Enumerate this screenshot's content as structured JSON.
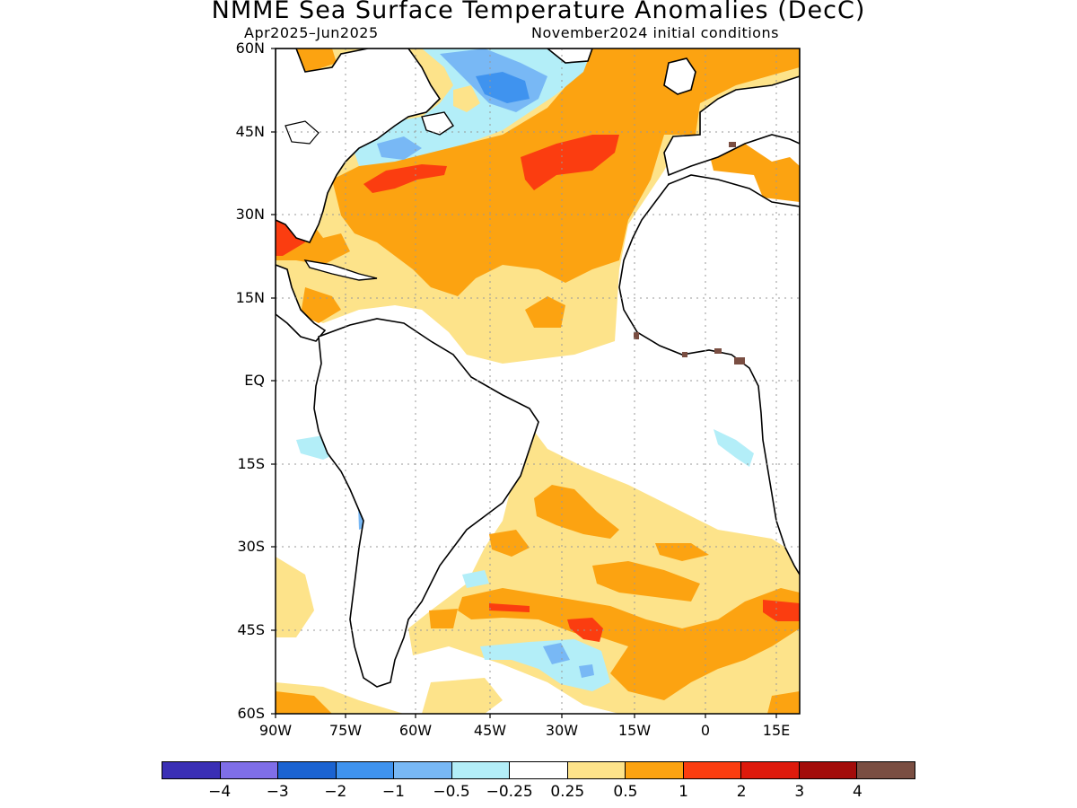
{
  "title": "NMME Sea Surface Temperature Anomalies (DecC)",
  "subtitle_left": "Apr2025–Jun2025",
  "subtitle_right": "November2024 initial conditions",
  "lat_labels": [
    "60N",
    "45N",
    "30N",
    "15N",
    "EQ",
    "15S",
    "30S",
    "45S",
    "60S"
  ],
  "lon_labels": [
    "90W",
    "75W",
    "60W",
    "45W",
    "30W",
    "15W",
    "0",
    "15E"
  ],
  "colorbar": {
    "colors": [
      "#3a2fb5",
      "#7f6ee8",
      "#1b63d1",
      "#3f93ef",
      "#78b8f5",
      "#b3eef8",
      "#ffffff",
      "#fde38a",
      "#fca311",
      "#fb3d10",
      "#de1a0c",
      "#a30c0a",
      "#7a4e42"
    ],
    "labels": [
      "−4",
      "−3",
      "−2",
      "−1",
      "−0.5",
      "−0.25",
      "0.25",
      "0.5",
      "1",
      "2",
      "3",
      "4"
    ]
  },
  "palette": {
    "land": "#ffffff",
    "grid": "#999999",
    "coast": "#000000"
  }
}
